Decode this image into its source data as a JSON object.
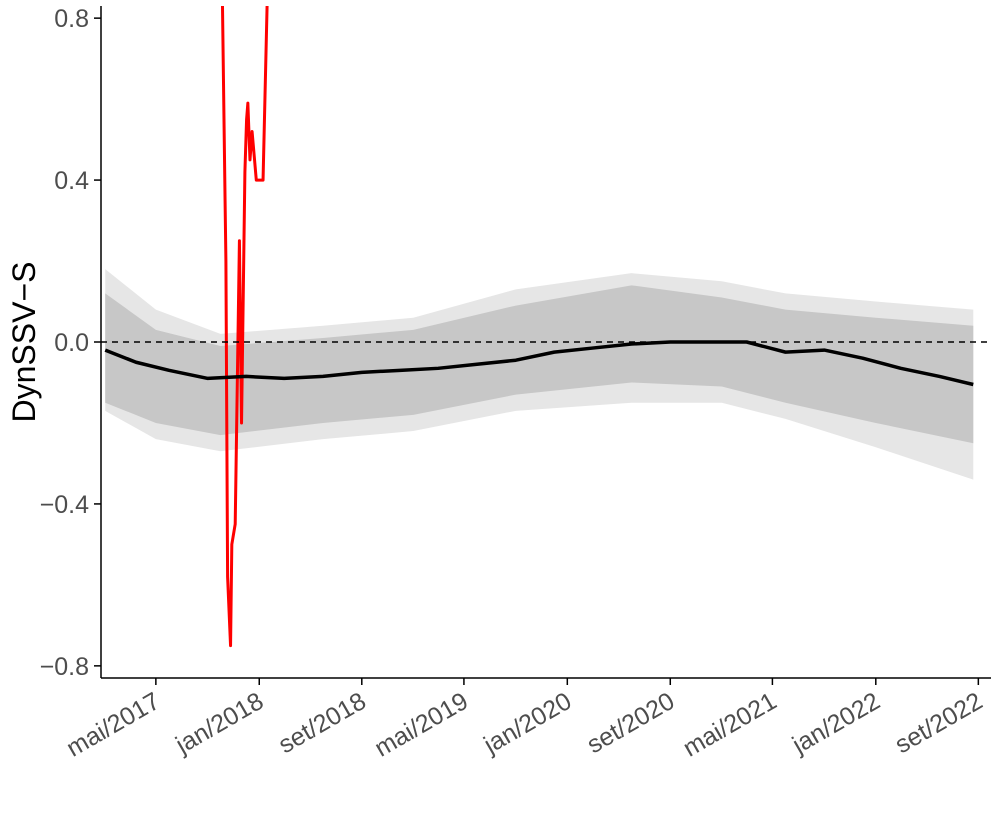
{
  "chart_data": {
    "type": "line",
    "title": "",
    "xlabel": "",
    "ylabel": "DynSSV−S",
    "xlim": [
      "2016-12-22",
      "2022-10-01"
    ],
    "ylim": [
      -0.83,
      0.83
    ],
    "yticks": [
      -0.8,
      -0.4,
      0.0,
      0.4,
      0.8
    ],
    "ytick_labels": [
      "−0.8",
      "−0.4",
      "0.0",
      "0.4",
      "0.8"
    ],
    "xticks": [
      "2017-05-01",
      "2018-01-01",
      "2018-09-01",
      "2019-05-01",
      "2020-01-01",
      "2020-09-01",
      "2021-05-01",
      "2022-01-01",
      "2022-09-01"
    ],
    "xtick_labels": [
      "mai/2017",
      "jan/2018",
      "set/2018",
      "mai/2019",
      "jan/2020",
      "set/2020",
      "mai/2021",
      "jan/2022",
      "set/2022"
    ],
    "reference_line": {
      "y": 0.0,
      "style": "dashed",
      "color": "#000000"
    },
    "grid": false,
    "legend": "none",
    "colors": {
      "observed": "#ff0000",
      "mean": "#000000",
      "band_inner": "#c7c7c7",
      "band_outer": "#e6e6e6"
    },
    "bands": {
      "x": [
        "2017-01-01",
        "2017-05-01",
        "2017-10-01",
        "2018-06-01",
        "2019-01-01",
        "2019-09-01",
        "2020-06-01",
        "2021-01-01",
        "2021-06-01",
        "2022-01-01",
        "2022-08-20"
      ],
      "outer_upper": [
        0.18,
        0.08,
        0.02,
        0.04,
        0.06,
        0.13,
        0.17,
        0.15,
        0.12,
        0.1,
        0.08
      ],
      "inner_upper": [
        0.12,
        0.03,
        -0.01,
        0.01,
        0.03,
        0.09,
        0.14,
        0.11,
        0.08,
        0.06,
        0.04
      ],
      "inner_lower": [
        -0.15,
        -0.2,
        -0.23,
        -0.2,
        -0.18,
        -0.13,
        -0.1,
        -0.11,
        -0.15,
        -0.2,
        -0.25
      ],
      "outer_lower": [
        -0.17,
        -0.24,
        -0.27,
        -0.24,
        -0.22,
        -0.17,
        -0.15,
        -0.15,
        -0.19,
        -0.26,
        -0.34
      ]
    },
    "series": [
      {
        "x": [
          "2017-01-01",
          "2017-03-15",
          "2017-06-01",
          "2017-09-01",
          "2017-12-01",
          "2018-03-01",
          "2018-06-01",
          "2018-09-01",
          "2018-12-01",
          "2019-03-01",
          "2019-06-01",
          "2019-09-01",
          "2019-12-01",
          "2020-03-01",
          "2020-06-01",
          "2020-09-01",
          "2020-12-01",
          "2021-03-01",
          "2021-06-01",
          "2021-09-01",
          "2021-12-01",
          "2022-03-01",
          "2022-06-01",
          "2022-08-20"
        ],
        "values": [
          -0.02,
          -0.05,
          -0.07,
          -0.09,
          -0.085,
          -0.09,
          -0.085,
          -0.075,
          -0.07,
          -0.065,
          -0.055,
          -0.045,
          -0.025,
          -0.015,
          -0.005,
          0.0,
          0.0,
          0.0,
          -0.025,
          -0.02,
          -0.04,
          -0.065,
          -0.085,
          -0.105
        ]
      },
      {
        "x": [
          "2017-10-05",
          "2017-10-12",
          "2017-10-14",
          "2017-10-18",
          "2017-10-25",
          "2017-10-28",
          "2017-11-05",
          "2017-11-15",
          "2017-11-20",
          "2017-11-28",
          "2017-12-02",
          "2017-12-05",
          "2017-12-10",
          "2017-12-15",
          "2017-12-25",
          "2018-01-10",
          "2018-01-20",
          "2018-01-28",
          "2018-01-30",
          "2018-02-01",
          "2018-02-05",
          "2018-02-07",
          "2018-02-10",
          "2018-02-15",
          "2018-02-20",
          "2018-02-25",
          "2018-03-01",
          "2018-03-05",
          "2018-03-06",
          "2018-03-10",
          "2018-03-15",
          "2018-03-20",
          "2018-03-25",
          "2018-03-28",
          "2018-03-30",
          "2018-04-01",
          "2018-04-05",
          "2018-04-10",
          "2018-04-15",
          "2018-04-20",
          "2018-04-25",
          "2018-04-30",
          "2018-05-05",
          "2018-05-10",
          "2018-05-15",
          "2018-05-20",
          "2018-05-25",
          "2018-06-01"
        ],
        "values": [
          0.9,
          0.35,
          0.2,
          -0.58,
          -0.75,
          -0.5,
          -0.45,
          0.25,
          -0.2,
          0.42,
          0.55,
          0.59,
          0.45,
          0.52,
          0.4,
          0.4,
          0.85,
          0.9,
          0.9,
          0.9,
          0.9,
          0.9,
          0.9,
          0.9,
          0.9,
          0.9,
          0.9,
          0.9,
          0.9,
          0.9,
          0.9,
          0.9,
          0.9,
          0.9,
          0.9,
          0.9,
          0.9,
          0.9,
          0.9,
          0.9,
          0.9,
          0.9,
          0.9,
          0.9,
          0.9,
          0.9,
          0.9,
          0.9
        ]
      }
    ]
  }
}
